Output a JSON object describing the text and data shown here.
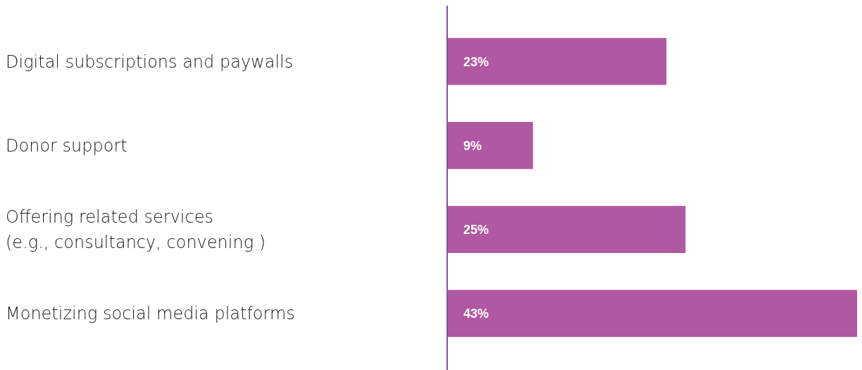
{
  "chart_data": {
    "type": "bar",
    "orientation": "horizontal",
    "categories": [
      "Digital subscriptions and paywalls",
      "Donor support",
      "Offering related services\n(e.g., consultancy, convening )",
      "Monetizing social media platforms"
    ],
    "values": [
      23,
      9,
      25,
      43
    ],
    "value_labels": [
      "23%",
      "9%",
      "25%",
      "43%"
    ],
    "color": "#b058a1",
    "xlim": [
      0,
      43
    ]
  }
}
